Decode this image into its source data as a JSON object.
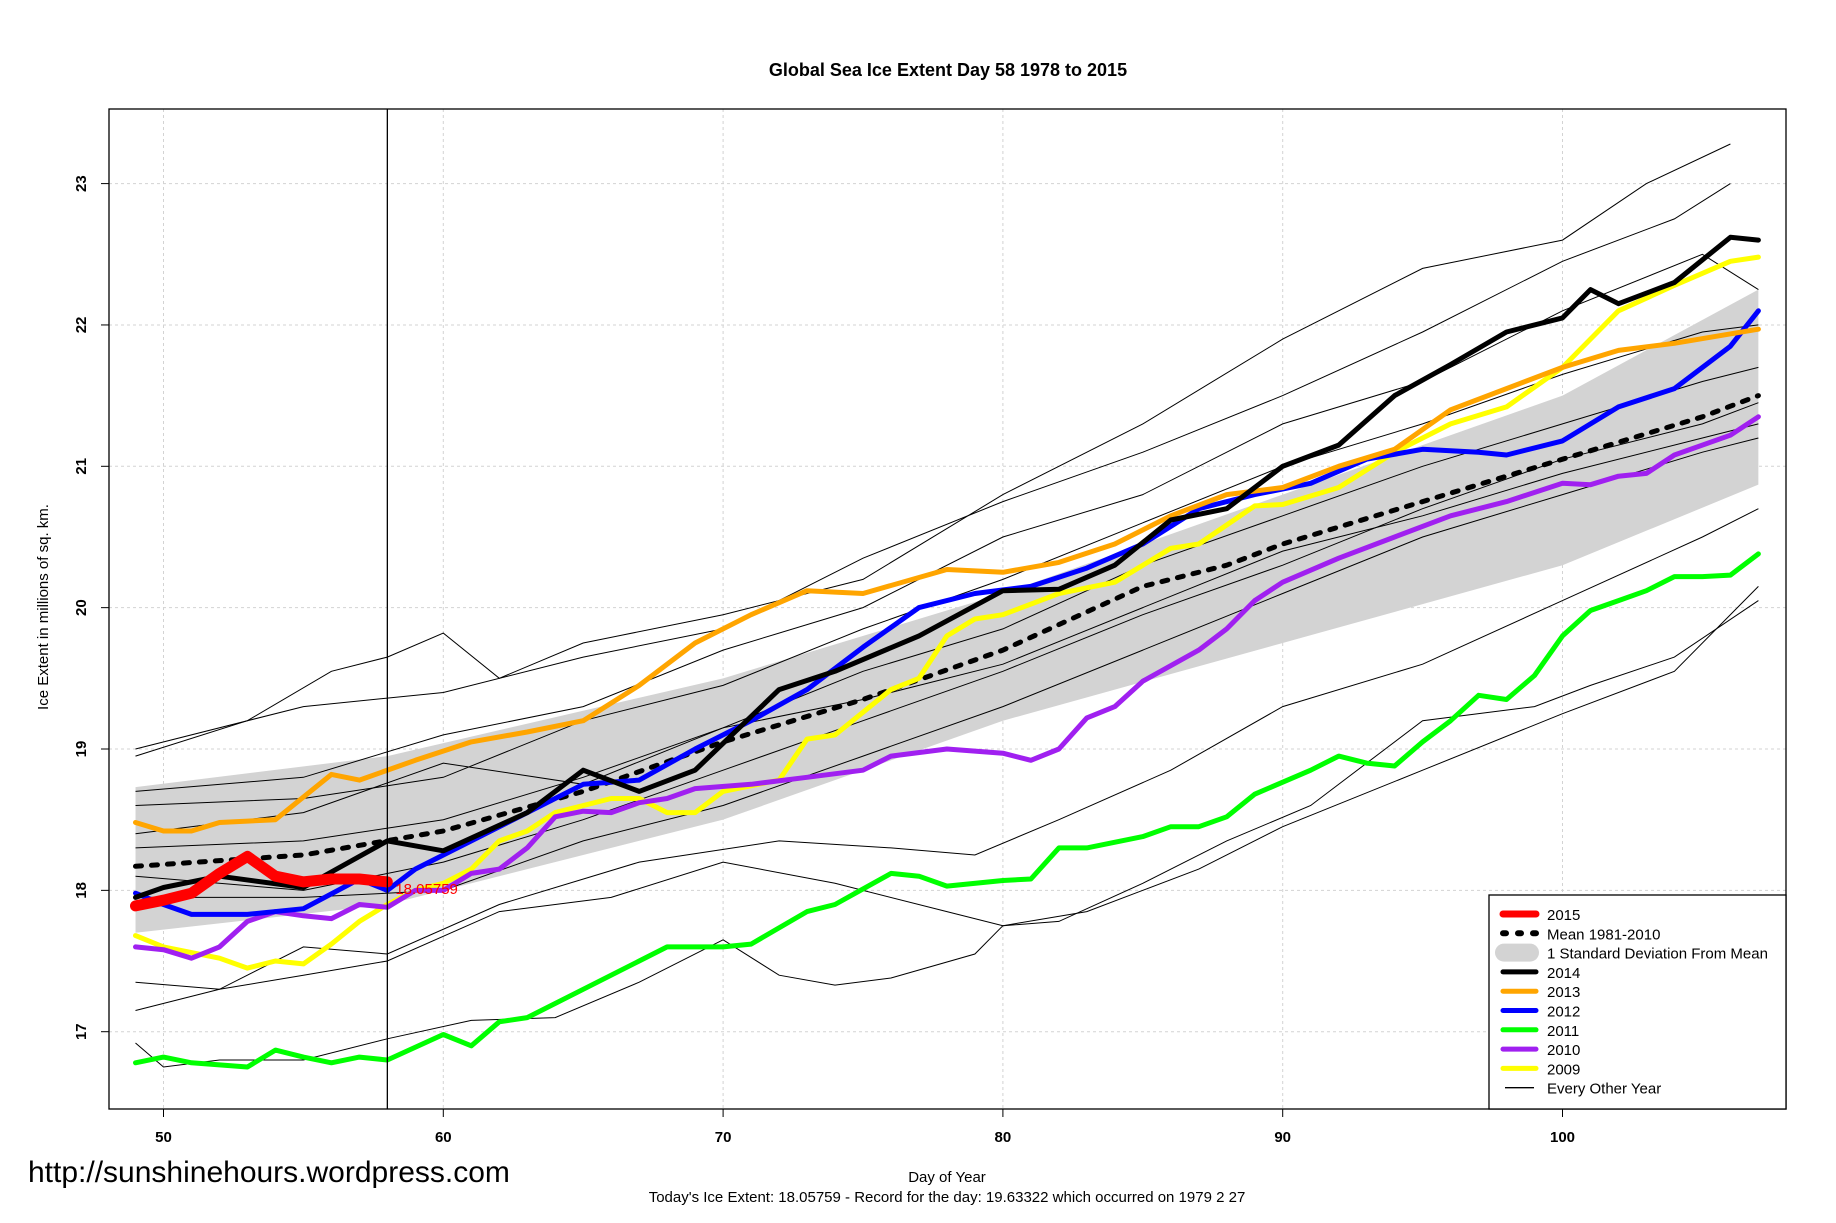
{
  "watermark_url": "http://sunshinehours.wordpress.com",
  "chart_data": {
    "type": "line",
    "title": "Global Sea Ice Extent Day 58 1978 to 2015",
    "xlabel": "Day of Year",
    "ylabel": "Ice Extent in millions of sq. km.",
    "subtitle": "Today's Ice Extent: 18.05759  - Record for the day: 19.63322 which occurred on 1979 2 27",
    "xlim": [
      48,
      108
    ],
    "ylim": [
      16.47,
      23.54
    ],
    "xticks": [
      50,
      60,
      70,
      80,
      90,
      100
    ],
    "yticks": [
      17,
      18,
      19,
      20,
      21,
      22,
      23
    ],
    "grid": true,
    "legend_position": "bottom-right",
    "current_day": 58,
    "current_value_label": "18.05759",
    "legend": [
      {
        "label": "2015",
        "color": "#ff0000",
        "style": "thick"
      },
      {
        "label": "Mean 1981-2010",
        "color": "#000000",
        "style": "dashed"
      },
      {
        "label": "1 Standard Deviation From Mean",
        "color": "#d3d3d3",
        "style": "band"
      },
      {
        "label": "2014",
        "color": "#000000",
        "style": "solid"
      },
      {
        "label": "2013",
        "color": "#ffa500",
        "style": "solid"
      },
      {
        "label": "2012",
        "color": "#0000ff",
        "style": "solid"
      },
      {
        "label": "2011",
        "color": "#00ff00",
        "style": "solid"
      },
      {
        "label": "2010",
        "color": "#a020f0",
        "style": "solid"
      },
      {
        "label": "2009",
        "color": "#ffff00",
        "style": "solid"
      },
      {
        "label": "Every Other Year",
        "color": "#000000",
        "style": "thin"
      }
    ],
    "sd_band": {
      "x": [
        49,
        58,
        70,
        80,
        90,
        100,
        107
      ],
      "upper": [
        18.73,
        18.95,
        19.5,
        20.1,
        20.8,
        21.5,
        22.25
      ],
      "lower": [
        17.7,
        17.9,
        18.5,
        19.2,
        19.75,
        20.3,
        20.87
      ]
    },
    "other_years": [
      {
        "x": [
          49,
          53,
          56,
          58,
          60,
          62,
          65,
          70,
          75,
          80,
          85,
          90,
          95,
          100,
          103,
          106
        ],
        "y": [
          18.95,
          19.2,
          19.55,
          19.65,
          19.82,
          19.5,
          19.75,
          19.95,
          20.2,
          20.8,
          21.3,
          21.9,
          22.4,
          22.6,
          23.0,
          23.28
        ]
      },
      {
        "x": [
          49,
          55,
          60,
          65,
          70,
          75,
          80,
          85,
          90,
          95,
          100,
          104,
          106
        ],
        "y": [
          19.0,
          19.3,
          19.4,
          19.65,
          19.85,
          20.35,
          20.75,
          21.1,
          21.5,
          21.95,
          22.45,
          22.75,
          23.0
        ]
      },
      {
        "x": [
          49,
          55,
          60,
          65,
          70,
          75,
          80,
          85,
          90,
          95,
          100,
          105,
          107
        ],
        "y": [
          18.7,
          18.8,
          19.1,
          19.3,
          19.7,
          20.0,
          20.5,
          20.8,
          21.3,
          21.6,
          22.1,
          22.5,
          22.25
        ]
      },
      {
        "x": [
          49,
          55,
          60,
          65,
          70,
          75,
          80,
          85,
          90,
          95,
          100,
          105,
          107
        ],
        "y": [
          18.6,
          18.65,
          18.8,
          19.2,
          19.45,
          19.85,
          20.2,
          20.6,
          21.0,
          21.3,
          21.65,
          21.95,
          22.0
        ]
      },
      {
        "x": [
          49,
          55,
          60,
          65,
          70,
          75,
          80,
          85,
          90,
          95,
          100,
          105,
          107
        ],
        "y": [
          18.3,
          18.35,
          18.5,
          18.8,
          19.15,
          19.55,
          19.85,
          20.3,
          20.65,
          21.0,
          21.3,
          21.6,
          21.7
        ]
      },
      {
        "x": [
          49,
          55,
          60,
          65,
          70,
          75,
          80,
          85,
          90,
          95,
          100,
          105,
          107
        ],
        "y": [
          18.1,
          18.0,
          18.2,
          18.5,
          18.85,
          19.2,
          19.55,
          19.95,
          20.3,
          20.7,
          21.05,
          21.3,
          21.45
        ]
      },
      {
        "x": [
          49,
          55,
          60,
          65,
          70,
          75,
          80,
          85,
          90,
          95,
          100,
          105,
          107
        ],
        "y": [
          17.95,
          17.95,
          18.0,
          18.35,
          18.6,
          18.95,
          19.3,
          19.7,
          20.1,
          20.5,
          20.8,
          21.1,
          21.2
        ]
      },
      {
        "x": [
          49,
          55,
          60,
          65,
          70,
          75,
          80,
          85,
          90,
          95,
          100,
          105,
          107
        ],
        "y": [
          18.4,
          18.55,
          18.9,
          18.75,
          19.15,
          19.35,
          19.6,
          20.0,
          20.4,
          20.65,
          20.95,
          21.2,
          21.3
        ]
      },
      {
        "x": [
          49,
          52,
          55,
          58,
          62,
          67,
          72,
          76,
          79,
          82,
          86,
          90,
          95,
          100,
          105,
          107
        ],
        "y": [
          17.35,
          17.3,
          17.6,
          17.55,
          17.9,
          18.2,
          18.35,
          18.3,
          18.25,
          18.5,
          18.85,
          19.3,
          19.6,
          20.05,
          20.5,
          20.7
        ]
      },
      {
        "x": [
          49,
          52,
          55,
          58,
          62,
          66,
          70,
          74,
          78,
          80,
          83,
          87,
          90,
          95,
          100,
          104,
          107
        ],
        "y": [
          17.15,
          17.3,
          17.4,
          17.5,
          17.85,
          17.95,
          18.2,
          18.05,
          17.85,
          17.75,
          17.85,
          18.15,
          18.45,
          18.85,
          19.25,
          19.55,
          20.15
        ]
      },
      {
        "x": [
          49,
          50,
          52,
          55,
          58,
          61,
          64,
          67,
          70,
          72,
          74,
          76,
          79,
          80,
          82,
          85,
          88,
          91,
          95,
          99,
          101,
          104,
          107
        ],
        "y": [
          16.92,
          16.75,
          16.8,
          16.8,
          16.95,
          17.08,
          17.1,
          17.35,
          17.65,
          17.4,
          17.33,
          17.38,
          17.55,
          17.75,
          17.78,
          18.05,
          18.35,
          18.6,
          19.2,
          19.3,
          19.45,
          19.65,
          20.05
        ]
      }
    ],
    "series": [
      {
        "name": "Mean 1981-2010",
        "color": "#000000",
        "style": "dashed",
        "x": [
          49,
          55,
          60,
          65,
          70,
          75,
          80,
          85,
          88,
          90,
          95,
          100,
          105,
          107
        ],
        "y": [
          18.17,
          18.25,
          18.42,
          18.7,
          19.05,
          19.35,
          19.7,
          20.15,
          20.3,
          20.45,
          20.75,
          21.05,
          21.35,
          21.5
        ]
      },
      {
        "name": "2009",
        "color": "#ffff00",
        "style": "solid",
        "x": [
          49,
          50,
          52,
          53,
          54,
          55,
          56,
          57,
          58,
          59,
          60,
          61,
          62,
          63,
          64,
          66,
          67,
          68,
          69,
          70,
          72,
          73,
          74,
          76,
          77,
          78,
          79,
          80,
          82,
          84,
          86,
          87,
          89,
          90,
          92,
          94,
          95,
          96,
          98,
          100,
          102,
          104,
          106,
          107
        ],
        "y": [
          17.68,
          17.6,
          17.52,
          17.45,
          17.5,
          17.48,
          17.62,
          17.78,
          17.9,
          18.0,
          18.05,
          18.15,
          18.35,
          18.42,
          18.55,
          18.65,
          18.65,
          18.55,
          18.55,
          18.7,
          18.78,
          19.07,
          19.1,
          19.42,
          19.5,
          19.8,
          19.92,
          19.95,
          20.1,
          20.18,
          20.42,
          20.45,
          20.72,
          20.73,
          20.85,
          21.1,
          21.2,
          21.3,
          21.42,
          21.7,
          22.1,
          22.28,
          22.45,
          22.48
        ]
      },
      {
        "name": "2010",
        "color": "#a020f0",
        "style": "solid",
        "x": [
          49,
          50,
          51,
          52,
          53,
          54,
          55,
          56,
          57,
          58,
          59,
          60,
          61,
          62,
          63,
          64,
          65,
          66,
          67,
          68,
          69,
          71,
          73,
          75,
          76,
          78,
          80,
          81,
          82,
          83,
          84,
          85,
          87,
          88,
          89,
          90,
          92,
          94,
          96,
          98,
          100,
          101,
          102,
          103,
          104,
          106,
          107
        ],
        "y": [
          17.6,
          17.58,
          17.52,
          17.6,
          17.78,
          17.85,
          17.82,
          17.8,
          17.9,
          17.88,
          18.0,
          18.0,
          18.12,
          18.15,
          18.3,
          18.52,
          18.56,
          18.55,
          18.62,
          18.65,
          18.72,
          18.75,
          18.8,
          18.85,
          18.95,
          19.0,
          18.97,
          18.92,
          19.0,
          19.22,
          19.3,
          19.48,
          19.7,
          19.85,
          20.05,
          20.18,
          20.35,
          20.5,
          20.65,
          20.75,
          20.88,
          20.87,
          20.93,
          20.95,
          21.08,
          21.22,
          21.35
        ]
      },
      {
        "name": "2011",
        "color": "#00ff00",
        "style": "solid",
        "x": [
          49,
          50,
          51,
          53,
          54,
          55,
          56,
          57,
          58,
          60,
          61,
          62,
          63,
          65,
          67,
          68,
          70,
          71,
          73,
          74,
          76,
          77,
          78,
          80,
          81,
          82,
          83,
          85,
          86,
          87,
          88,
          89,
          91,
          92,
          93,
          94,
          95,
          96,
          97,
          98,
          99,
          100,
          101,
          102,
          103,
          104,
          105,
          106,
          107
        ],
        "y": [
          16.78,
          16.82,
          16.78,
          16.75,
          16.87,
          16.82,
          16.78,
          16.82,
          16.8,
          16.98,
          16.9,
          17.07,
          17.1,
          17.3,
          17.5,
          17.6,
          17.6,
          17.62,
          17.85,
          17.9,
          18.12,
          18.1,
          18.03,
          18.07,
          18.08,
          18.3,
          18.3,
          18.38,
          18.45,
          18.45,
          18.52,
          18.68,
          18.85,
          18.95,
          18.9,
          18.88,
          19.05,
          19.2,
          19.38,
          19.35,
          19.52,
          19.8,
          19.98,
          20.05,
          20.12,
          20.22,
          20.22,
          20.23,
          20.38
        ]
      },
      {
        "name": "2012",
        "color": "#0000ff",
        "style": "solid",
        "x": [
          49,
          50,
          51,
          53,
          55,
          57,
          58,
          59,
          61,
          63,
          65,
          67,
          69,
          71,
          73,
          75,
          77,
          79,
          81,
          83,
          85,
          87,
          89,
          91,
          93,
          95,
          97,
          98,
          100,
          102,
          104,
          106,
          107
        ],
        "y": [
          17.98,
          17.9,
          17.83,
          17.83,
          17.87,
          18.08,
          18.0,
          18.15,
          18.35,
          18.55,
          18.75,
          18.78,
          19.0,
          19.2,
          19.42,
          19.72,
          20.0,
          20.1,
          20.15,
          20.28,
          20.45,
          20.7,
          20.8,
          20.88,
          21.05,
          21.12,
          21.1,
          21.08,
          21.18,
          21.42,
          21.55,
          21.85,
          22.1
        ]
      },
      {
        "name": "2013",
        "color": "#ffa500",
        "style": "solid",
        "x": [
          49,
          50,
          51,
          52,
          54,
          56,
          57,
          59,
          61,
          63,
          65,
          67,
          69,
          71,
          73,
          75,
          78,
          80,
          82,
          84,
          86,
          88,
          90,
          92,
          94,
          96,
          98,
          100,
          102,
          104,
          107
        ],
        "y": [
          18.48,
          18.42,
          18.42,
          18.48,
          18.5,
          18.82,
          18.78,
          18.92,
          19.05,
          19.12,
          19.2,
          19.45,
          19.75,
          19.95,
          20.12,
          20.1,
          20.27,
          20.25,
          20.32,
          20.45,
          20.65,
          20.8,
          20.85,
          21.0,
          21.12,
          21.4,
          21.55,
          21.7,
          21.82,
          21.87,
          21.97
        ]
      },
      {
        "name": "2014",
        "color": "#000000",
        "style": "solid",
        "x": [
          49,
          50,
          52,
          55,
          58,
          60,
          63,
          65,
          67,
          69,
          72,
          74,
          77,
          80,
          82,
          84,
          86,
          88,
          90,
          92,
          94,
          96,
          98,
          100,
          101,
          102,
          104,
          106,
          107
        ],
        "y": [
          17.95,
          18.02,
          18.1,
          18.02,
          18.35,
          18.28,
          18.55,
          18.85,
          18.7,
          18.85,
          19.42,
          19.55,
          19.8,
          20.12,
          20.13,
          20.3,
          20.62,
          20.7,
          21.0,
          21.15,
          21.5,
          21.72,
          21.95,
          22.05,
          22.25,
          22.15,
          22.3,
          22.62,
          22.6
        ]
      },
      {
        "name": "2015",
        "color": "#ff0000",
        "style": "thick",
        "x": [
          49,
          50,
          51,
          52,
          53,
          54,
          55,
          56,
          57,
          58
        ],
        "y": [
          17.89,
          17.93,
          17.98,
          18.12,
          18.24,
          18.1,
          18.06,
          18.08,
          18.08,
          18.06
        ]
      }
    ]
  }
}
